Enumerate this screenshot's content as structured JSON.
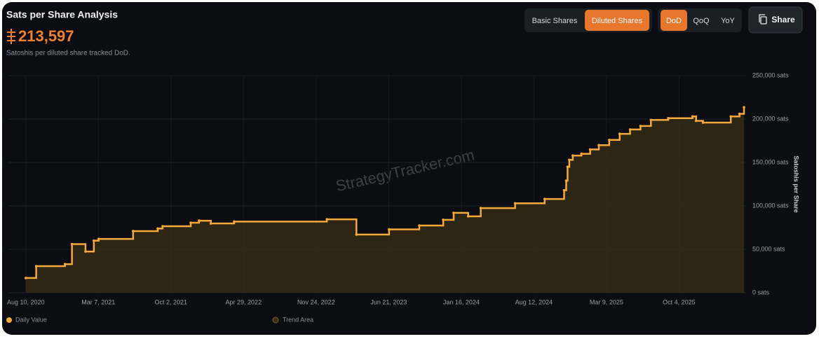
{
  "ui": {
    "controls": [
      "Basic Shares",
      "Diluted Shares",
      "DoD",
      "QoQ",
      "YoY"
    ],
    "active": [
      "Diluted Shares",
      "DoD"
    ],
    "share": "Share",
    "headline": "213,597",
    "subtitle": "Satoshis per diluted share tracked DoD.",
    "watermark": "StrategyTracker.com"
  },
  "chart_data": {
    "type": "line",
    "title": "Sats per Share Analysis",
    "y_label": "Satoshis per Share",
    "step": true,
    "grid": true,
    "x": [
      "2020-08-10",
      "2020-09-09",
      "2020-12-01",
      "2020-12-21",
      "2021-01-29",
      "2021-02-22",
      "2021-03-08",
      "2021-06-15",
      "2021-08-25",
      "2021-09-08",
      "2021-11-28",
      "2021-12-22",
      "2022-01-25",
      "2022-04-02",
      "2022-12-25",
      "2023-03-20",
      "2023-06-22",
      "2023-09-17",
      "2023-11-25",
      "2023-12-25",
      "2024-02-05",
      "2024-03-12",
      "2024-06-19",
      "2024-09-12",
      "2024-11-07",
      "2024-11-13",
      "2024-11-17",
      "2024-11-22",
      "2024-12-02",
      "2024-12-27",
      "2025-01-21",
      "2025-02-15",
      "2025-03-17",
      "2025-04-16",
      "2025-05-16",
      "2025-06-15",
      "2025-07-15",
      "2025-09-03",
      "2025-11-12",
      "2025-11-22",
      "2025-12-12",
      "2026-03-02",
      "2026-03-27",
      "2026-04-09"
    ],
    "series": [
      {
        "name": "Daily Value",
        "color": "#f5a93a",
        "values": [
          17000,
          30600,
          33000,
          56000,
          47500,
          60000,
          62000,
          71000,
          74000,
          76600,
          80600,
          83000,
          79800,
          82000,
          84600,
          67000,
          73000,
          77400,
          84000,
          92000,
          88000,
          97500,
          103000,
          108000,
          118000,
          129000,
          145000,
          153000,
          158000,
          160000,
          165000,
          170000,
          176000,
          183000,
          188000,
          192000,
          199000,
          201000,
          203000,
          198000,
          196000,
          203000,
          206000,
          213597
        ]
      }
    ],
    "area": {
      "name": "Trend Area",
      "color": "#3a2f15"
    },
    "xlim": [
      "2020-06-21",
      "2026-04-17"
    ],
    "xticks": [
      {
        "value": "2020-08-10",
        "label": "Aug 10, 2020"
      },
      {
        "value": "2021-03-07",
        "label": "Mar 7, 2021"
      },
      {
        "value": "2021-10-02",
        "label": "Oct 2, 2021"
      },
      {
        "value": "2022-04-29",
        "label": "Apr 29, 2022"
      },
      {
        "value": "2022-11-24",
        "label": "Nov 24, 2022"
      },
      {
        "value": "2023-06-21",
        "label": "Jun 21, 2023"
      },
      {
        "value": "2024-01-16",
        "label": "Jan 16, 2024"
      },
      {
        "value": "2024-08-12",
        "label": "Aug 12, 2024"
      },
      {
        "value": "2025-03-09",
        "label": "Mar 9, 2025"
      },
      {
        "value": "2025-10-04",
        "label": "Oct 4, 2025"
      }
    ],
    "ylim": [
      0,
      250000
    ],
    "yticks": [
      {
        "value": 0,
        "label": "0 sats"
      },
      {
        "value": 50000,
        "label": "50,000 sats"
      },
      {
        "value": 100000,
        "label": "100,000 sats"
      },
      {
        "value": 150000,
        "label": "150,000 sats"
      },
      {
        "value": 200000,
        "label": "200,000 sats"
      },
      {
        "value": 250000,
        "label": "250,000 sats"
      }
    ]
  }
}
